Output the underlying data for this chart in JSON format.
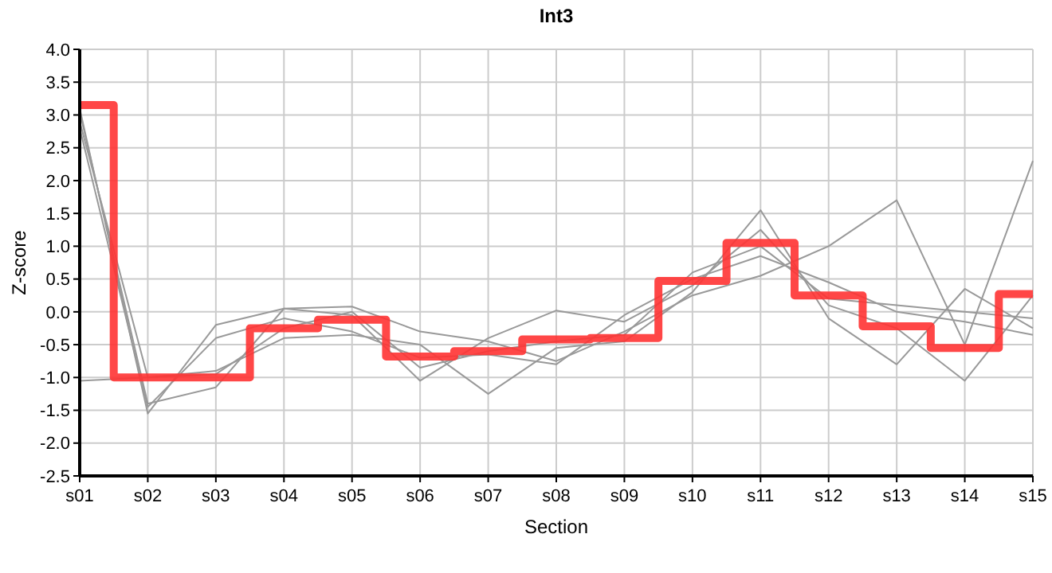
{
  "chart_data": {
    "type": "line",
    "title": "Int3",
    "xlabel": "Section",
    "ylabel": "Z-score",
    "categories": [
      "s01",
      "s02",
      "s03",
      "s04",
      "s05",
      "s06",
      "s07",
      "s08",
      "s09",
      "s10",
      "s11",
      "s12",
      "s13",
      "s14",
      "s15"
    ],
    "ylim": [
      -2.5,
      4
    ],
    "yticks": [
      {
        "value": -2.5,
        "label": "-2.5"
      },
      {
        "value": -2,
        "label": "-2.0"
      },
      {
        "value": -1.5,
        "label": "-1.5"
      },
      {
        "value": -1,
        "label": "-1.0"
      },
      {
        "value": -0.5,
        "label": "-0.5"
      },
      {
        "value": 0,
        "label": "0.0"
      },
      {
        "value": 0.5,
        "label": "0.5"
      },
      {
        "value": 1,
        "label": "1.0"
      },
      {
        "value": 1.5,
        "label": "1.5"
      },
      {
        "value": 2,
        "label": "2.0"
      },
      {
        "value": 2.5,
        "label": "2.5"
      },
      {
        "value": 3,
        "label": "3.0"
      },
      {
        "value": 3.5,
        "label": "3.5"
      },
      {
        "value": 4,
        "label": "4.0"
      }
    ],
    "grid": true,
    "marker": "none",
    "series": [
      {
        "color": "#999999",
        "values": [
          3.1,
          -1.55,
          -0.2,
          0.05,
          0.08,
          -0.3,
          -0.45,
          -0.75,
          -0.3,
          0.25,
          0.55,
          1.0,
          1.7,
          -0.5,
          2.3
        ]
      },
      {
        "color": "#999999",
        "values": [
          -1.05,
          -1.0,
          -0.9,
          -0.4,
          -0.35,
          -0.5,
          -1.25,
          -0.55,
          -0.45,
          0.3,
          1.55,
          -0.1,
          -0.8,
          0.35,
          -0.25
        ]
      },
      {
        "color": "#999999",
        "values": [
          3.05,
          -1.4,
          -1.15,
          0.05,
          -0.05,
          -1.05,
          -0.4,
          0.02,
          -0.15,
          0.4,
          1.25,
          0.1,
          -0.25,
          -1.05,
          0.25
        ]
      },
      {
        "color": "#999999",
        "values": [
          2.8,
          -1.45,
          -0.4,
          -0.1,
          -0.3,
          -0.7,
          -0.65,
          -0.8,
          -0.05,
          0.5,
          0.85,
          0.45,
          0.0,
          -0.15,
          -0.35
        ]
      },
      {
        "color": "#999999",
        "values": [
          2.9,
          -1.0,
          -0.95,
          -0.25,
          0.0,
          -0.85,
          -0.6,
          -0.45,
          -0.35,
          0.6,
          1.0,
          0.2,
          0.1,
          0.0,
          -0.1
        ]
      },
      {
        "type": "step",
        "color": "#ff3333",
        "values": [
          3.15,
          -1.0,
          -1.0,
          -0.25,
          -0.12,
          -0.68,
          -0.6,
          -0.42,
          -0.4,
          0.47,
          1.05,
          0.25,
          -0.22,
          -0.55,
          0.27
        ]
      }
    ]
  }
}
